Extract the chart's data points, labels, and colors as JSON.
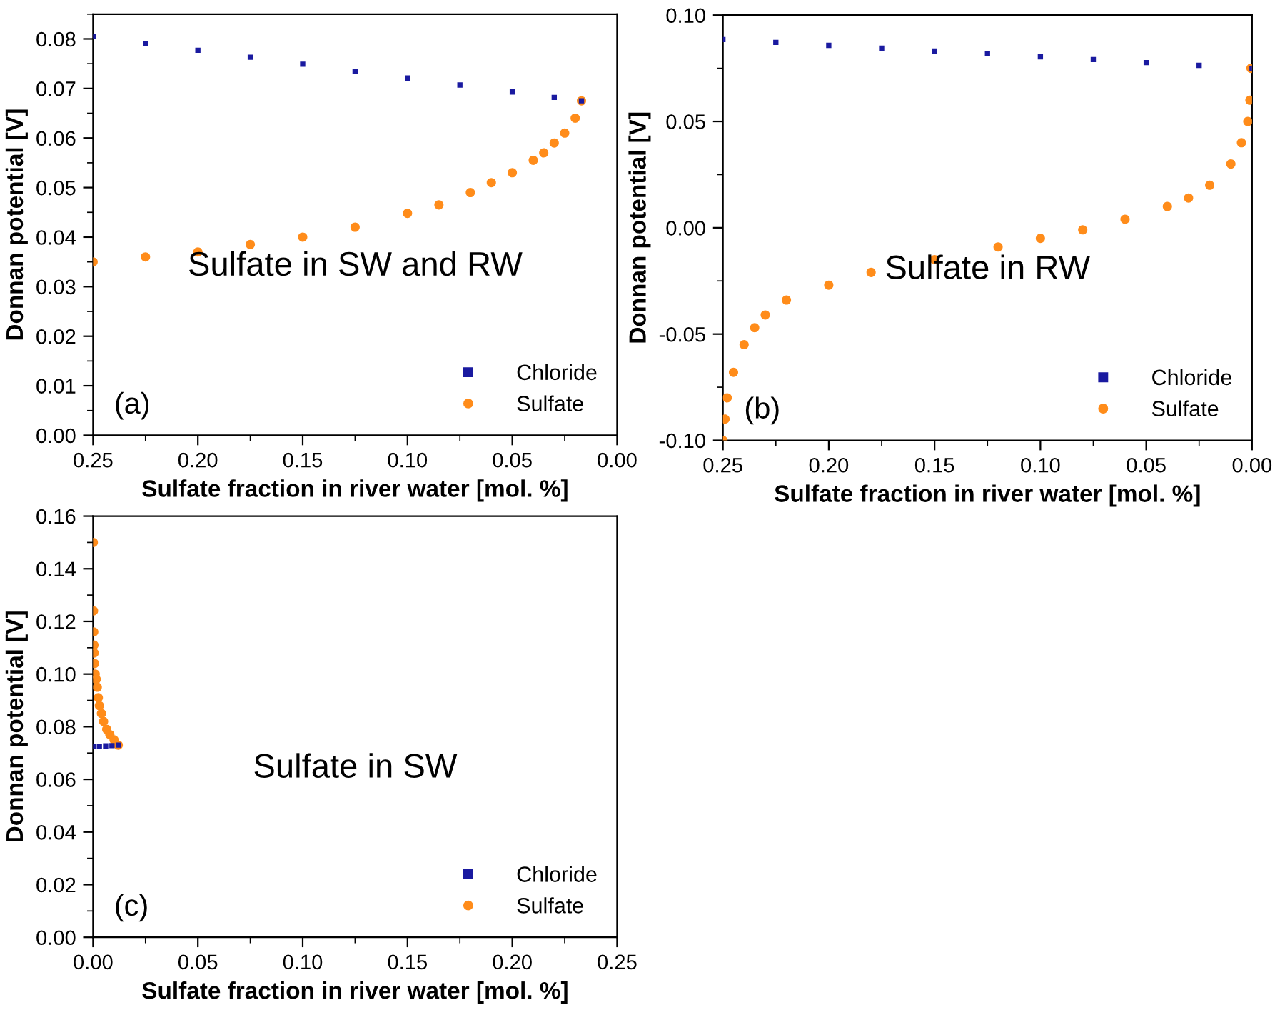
{
  "chart_data": [
    {
      "type": "scatter",
      "xlabel": "Sulfate fraction in river water [mol. %]",
      "ylabel": "Donnan potential [V]",
      "annotations": [
        "Sulfate in SW and RW",
        "(a)"
      ],
      "legend": "bottom right",
      "grid": false,
      "xlim": [
        0.25,
        0.0
      ],
      "xticks": [
        0.25,
        {
          "value": 0.2,
          "label": "0.20"
        },
        0.15,
        {
          "value": 0.1,
          "label": "0.10"
        },
        0.05,
        {
          "value": 0.0,
          "label": "0.00"
        }
      ],
      "ylim": [
        0.0,
        0.085
      ],
      "yticks": [
        {
          "value": 0.0,
          "label": "0.00"
        },
        0.01,
        0.02,
        0.03,
        0.04,
        0.05,
        0.06,
        0.07,
        0.08
      ],
      "series": [
        {
          "name": "Chloride",
          "color": "#1a1aa0",
          "marker": "square",
          "x": [
            0.25,
            0.225,
            0.2,
            0.175,
            0.15,
            0.125,
            0.1,
            0.075,
            0.05,
            0.03,
            0.017
          ],
          "values": [
            0.0805,
            0.0791,
            0.0777,
            0.0763,
            0.0749,
            0.0735,
            0.0721,
            0.0707,
            0.0693,
            0.0682,
            0.0675
          ]
        },
        {
          "name": "Sulfate",
          "color": "#ff8c1a",
          "marker": "circle",
          "x": [
            0.25,
            0.225,
            0.2,
            0.175,
            0.15,
            0.125,
            0.1,
            0.085,
            0.07,
            0.06,
            0.05,
            0.04,
            0.035,
            0.03,
            0.025,
            0.02,
            0.017
          ],
          "values": [
            0.035,
            0.036,
            0.037,
            0.0385,
            0.04,
            0.042,
            0.0448,
            0.0465,
            0.049,
            0.051,
            0.053,
            0.0555,
            0.057,
            0.059,
            0.061,
            0.064,
            0.0675
          ]
        }
      ]
    },
    {
      "type": "scatter",
      "xlabel": "Sulfate fraction in river water [mol. %]",
      "ylabel": "Donnan potential [V]",
      "annotations": [
        "Sulfate in RW",
        "(b)"
      ],
      "legend": "bottom right",
      "grid": false,
      "xlim": [
        0.25,
        0.0
      ],
      "xticks": [
        0.25,
        {
          "value": 0.2,
          "label": "0.20"
        },
        0.15,
        {
          "value": 0.1,
          "label": "0.10"
        },
        0.05,
        {
          "value": 0.0,
          "label": "0.00"
        }
      ],
      "ylim": [
        -0.1,
        0.1
      ],
      "yticks": [
        {
          "value": -0.1,
          "label": "-0.10"
        },
        {
          "value": -0.05,
          "label": "-0.05"
        },
        {
          "value": 0.0,
          "label": "0.00"
        },
        0.05,
        {
          "value": 0.1,
          "label": "0.10"
        }
      ],
      "series": [
        {
          "name": "Chloride",
          "color": "#1a1aa0",
          "marker": "square",
          "x": [
            0.25,
            0.225,
            0.2,
            0.175,
            0.15,
            0.125,
            0.1,
            0.075,
            0.05,
            0.025,
            0.0
          ],
          "values": [
            0.0885,
            0.0872,
            0.0858,
            0.0845,
            0.0831,
            0.0818,
            0.0804,
            0.0791,
            0.0777,
            0.0764,
            0.075
          ]
        },
        {
          "name": "Sulfate",
          "color": "#ff8c1a",
          "marker": "circle",
          "x": [
            0.25,
            0.249,
            0.248,
            0.245,
            0.24,
            0.235,
            0.23,
            0.22,
            0.2,
            0.18,
            0.15,
            0.12,
            0.1,
            0.08,
            0.06,
            0.04,
            0.03,
            0.02,
            0.01,
            0.005,
            0.002,
            0.001,
            0.0005
          ],
          "values": [
            -0.1,
            -0.09,
            -0.08,
            -0.068,
            -0.055,
            -0.047,
            -0.041,
            -0.034,
            -0.027,
            -0.021,
            -0.015,
            -0.009,
            -0.005,
            -0.001,
            0.004,
            0.01,
            0.014,
            0.02,
            0.03,
            0.04,
            0.05,
            0.06,
            0.075
          ]
        }
      ]
    },
    {
      "type": "scatter",
      "xlabel": "Sulfate fraction in river water [mol. %]",
      "ylabel": "Donnan potential [V]",
      "annotations": [
        "Sulfate in SW",
        "(c)"
      ],
      "legend": "bottom right",
      "grid": false,
      "xlim": [
        0.0,
        0.25
      ],
      "xticks": [
        {
          "value": 0.0,
          "label": "0.00"
        },
        0.05,
        {
          "value": 0.1,
          "label": "0.10"
        },
        0.15,
        {
          "value": 0.2,
          "label": "0.20"
        },
        0.25
      ],
      "ylim": [
        0.0,
        0.16
      ],
      "yticks": [
        {
          "value": 0.0,
          "label": "0.00"
        },
        0.02,
        0.04,
        0.06,
        0.08,
        {
          "value": 0.1,
          "label": "0.10"
        },
        0.12,
        0.14,
        0.16
      ],
      "series": [
        {
          "name": "Chloride",
          "color": "#1a1aa0",
          "marker": "square",
          "x": [
            0.0,
            0.003,
            0.006,
            0.009,
            0.012
          ],
          "values": [
            0.0725,
            0.0726,
            0.0727,
            0.0728,
            0.073
          ]
        },
        {
          "name": "Sulfate",
          "color": "#ff8c1a",
          "marker": "circle",
          "x": [
            0.012,
            0.01,
            0.008,
            0.0065,
            0.005,
            0.004,
            0.003,
            0.0025,
            0.002,
            0.0015,
            0.001,
            0.0007,
            0.0005,
            0.0004,
            0.0003,
            0.0002,
            0.0001
          ],
          "values": [
            0.073,
            0.075,
            0.077,
            0.079,
            0.082,
            0.085,
            0.088,
            0.091,
            0.095,
            0.098,
            0.1,
            0.104,
            0.108,
            0.111,
            0.116,
            0.124,
            0.15
          ]
        }
      ]
    }
  ]
}
